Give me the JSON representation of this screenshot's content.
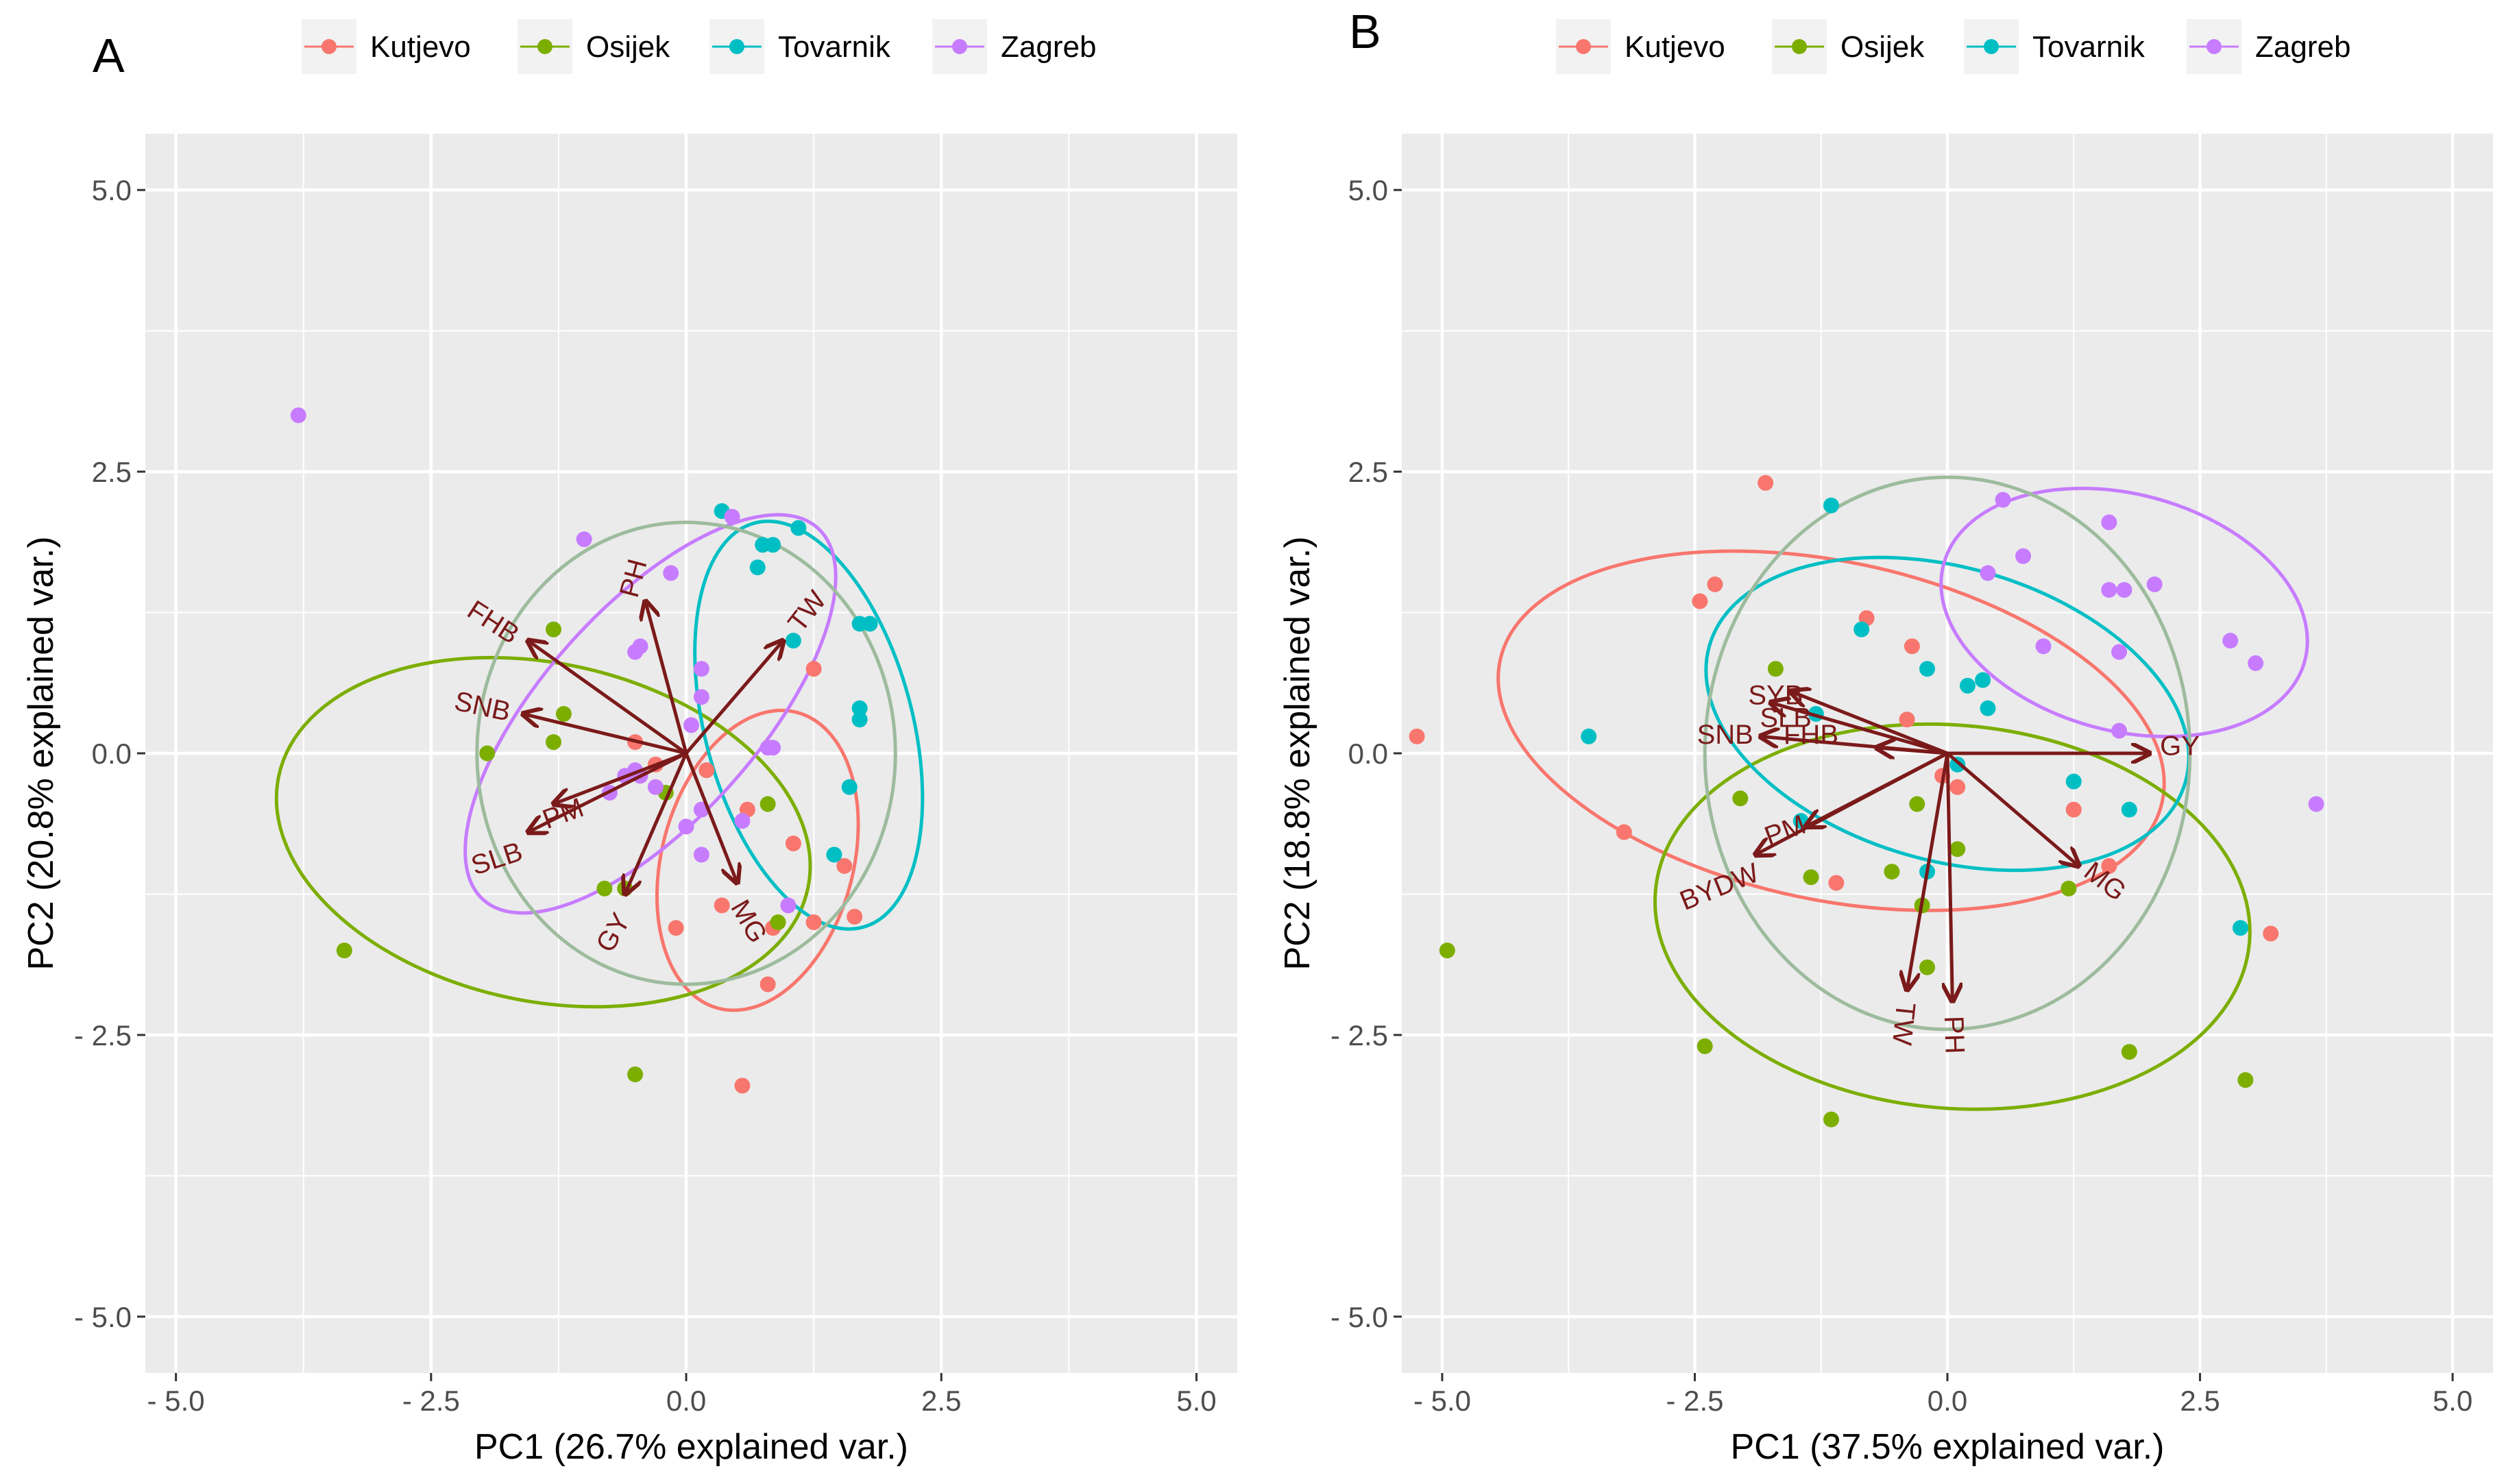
{
  "figure": {
    "colors": {
      "Kutjevo": "#F8766D",
      "Osijek": "#7CAE00",
      "Tovarnik": "#00BFC4",
      "Zagreb": "#C77CFF",
      "loading": "#7B1A1A",
      "overall_ellipse": "#9DBB9D",
      "panel_bg": "#EBEBEB",
      "grid": "#FFFFFF"
    },
    "legend_entries": [
      "Kutjevo",
      "Osijek",
      "Tovarnik",
      "Zagreb"
    ]
  },
  "chart_data": [
    {
      "type": "scatter",
      "panel_label": "A",
      "xlabel": "PC1 (26.7% explained var.)",
      "ylabel": "PC2 (20.8% explained var.)",
      "xlim": [
        -5.3,
        5.4
      ],
      "ylim": [
        -5.5,
        5.5
      ],
      "xticks": [
        -5.0,
        -2.5,
        0.0,
        2.5,
        5.0
      ],
      "xtick_labels": [
        "- 5.0",
        "- 2.5",
        "0.0",
        "2.5",
        "5.0"
      ],
      "yticks": [
        5.0,
        2.5,
        0.0,
        -2.5,
        -5.0
      ],
      "ytick_labels": [
        "5.0",
        "2.5",
        "0.0",
        "- 2.5",
        "- 5.0"
      ],
      "legend_position": "top",
      "series": [
        {
          "name": "Kutjevo",
          "points": [
            [
              -0.5,
              0.1
            ],
            [
              -0.3,
              -0.1
            ],
            [
              0.2,
              -0.15
            ],
            [
              0.6,
              -0.5
            ],
            [
              1.05,
              -0.8
            ],
            [
              1.25,
              0.75
            ],
            [
              1.55,
              -1.0
            ],
            [
              1.65,
              -1.45
            ],
            [
              1.25,
              -1.5
            ],
            [
              0.85,
              -1.55
            ],
            [
              0.35,
              -1.35
            ],
            [
              -0.1,
              -1.55
            ],
            [
              0.8,
              -2.05
            ],
            [
              0.55,
              -2.95
            ]
          ]
        },
        {
          "name": "Osijek",
          "points": [
            [
              -1.3,
              1.1
            ],
            [
              -1.2,
              0.35
            ],
            [
              -1.3,
              0.1
            ],
            [
              -1.95,
              0.0
            ],
            [
              -0.2,
              -0.35
            ],
            [
              -0.6,
              -1.2
            ],
            [
              -0.8,
              -1.2
            ],
            [
              0.8,
              -0.45
            ],
            [
              0.9,
              -1.5
            ],
            [
              -3.35,
              -1.75
            ],
            [
              -0.5,
              -2.85
            ]
          ]
        },
        {
          "name": "Tovarnik",
          "points": [
            [
              0.35,
              2.15
            ],
            [
              0.75,
              1.85
            ],
            [
              0.85,
              1.85
            ],
            [
              1.1,
              2.0
            ],
            [
              0.7,
              1.65
            ],
            [
              1.7,
              1.15
            ],
            [
              1.8,
              1.15
            ],
            [
              1.05,
              1.0
            ],
            [
              1.7,
              0.4
            ],
            [
              1.7,
              0.3
            ],
            [
              1.6,
              -0.3
            ],
            [
              1.45,
              -0.9
            ]
          ]
        },
        {
          "name": "Zagreb",
          "points": [
            [
              -3.8,
              3.0
            ],
            [
              -1.0,
              1.9
            ],
            [
              -0.15,
              1.6
            ],
            [
              0.45,
              2.1
            ],
            [
              -0.5,
              0.9
            ],
            [
              -0.45,
              0.95
            ],
            [
              0.15,
              0.75
            ],
            [
              0.15,
              0.5
            ],
            [
              0.05,
              0.25
            ],
            [
              0.8,
              0.05
            ],
            [
              0.85,
              0.05
            ],
            [
              -0.5,
              -0.15
            ],
            [
              -0.45,
              -0.2
            ],
            [
              -0.3,
              -0.3
            ],
            [
              -0.75,
              -0.35
            ],
            [
              -0.6,
              -0.2
            ],
            [
              0.15,
              -0.5
            ],
            [
              0.0,
              -0.65
            ],
            [
              0.55,
              -0.6
            ],
            [
              0.15,
              -0.9
            ],
            [
              1.0,
              -1.35
            ]
          ]
        }
      ],
      "ellipses": [
        {
          "name": "Kutjevo",
          "cx": 0.7,
          "cy": -0.95,
          "rx": 1.5,
          "ry": 0.85,
          "angle": -75
        },
        {
          "name": "Osijek",
          "cx": -1.4,
          "cy": -0.7,
          "rx": 2.65,
          "ry": 1.5,
          "angle": 12
        },
        {
          "name": "Tovarnik",
          "cx": 1.2,
          "cy": 0.25,
          "rx": 2.05,
          "ry": 0.92,
          "angle": 75
        },
        {
          "name": "Zagreb",
          "cx": -0.35,
          "cy": 0.35,
          "rx": 2.45,
          "ry": 0.95,
          "angle": -48
        },
        {
          "name": "All",
          "cx": 0.0,
          "cy": 0.0,
          "rx": 2.05,
          "ry": 2.05,
          "angle": 0
        }
      ],
      "loadings": [
        {
          "label": "PH",
          "x": -0.4,
          "y": 1.35,
          "lx": -0.5,
          "ly": 1.55,
          "rot": -75
        },
        {
          "label": "FHB",
          "x": -1.55,
          "y": 1.0,
          "lx": -1.9,
          "ly": 1.15,
          "rot": 33
        },
        {
          "label": "SNB",
          "x": -1.6,
          "y": 0.35,
          "lx": -2.0,
          "ly": 0.4,
          "rot": 12
        },
        {
          "label": "PM",
          "x": -1.3,
          "y": -0.45,
          "lx": -1.2,
          "ly": -0.55,
          "rot": -20
        },
        {
          "label": "SLB",
          "x": -1.55,
          "y": -0.7,
          "lx": -1.85,
          "ly": -0.95,
          "rot": -18
        },
        {
          "label": "GY",
          "x": -0.6,
          "y": -1.25,
          "lx": -0.7,
          "ly": -1.6,
          "rot": -60
        },
        {
          "label": "MG",
          "x": 0.5,
          "y": -1.15,
          "lx": 0.6,
          "ly": -1.5,
          "rot": 60
        },
        {
          "label": "TW",
          "x": 0.95,
          "y": 1.0,
          "lx": 1.2,
          "ly": 1.25,
          "rot": -52
        }
      ]
    },
    {
      "type": "scatter",
      "panel_label": "B",
      "xlabel": "PC1 (37.5% explained var.)",
      "ylabel": "PC2 (18.8% explained var.)",
      "xlim": [
        -5.4,
        5.4
      ],
      "ylim": [
        -5.5,
        5.5
      ],
      "xticks": [
        -5.0,
        -2.5,
        0.0,
        2.5,
        5.0
      ],
      "xtick_labels": [
        "- 5.0",
        "- 2.5",
        "0.0",
        "2.5",
        "5.0"
      ],
      "yticks": [
        5.0,
        2.5,
        0.0,
        -2.5,
        -5.0
      ],
      "ytick_labels": [
        "5.0",
        "2.5",
        "0.0",
        "- 2.5",
        "- 5.0"
      ],
      "legend_position": "top",
      "series": [
        {
          "name": "Kutjevo",
          "points": [
            [
              -1.8,
              2.4
            ],
            [
              -2.3,
              1.5
            ],
            [
              -2.45,
              1.35
            ],
            [
              -0.8,
              1.2
            ],
            [
              -0.35,
              0.95
            ],
            [
              -0.4,
              0.3
            ],
            [
              -0.05,
              -0.2
            ],
            [
              0.1,
              -0.3
            ],
            [
              -3.2,
              -0.7
            ],
            [
              -1.1,
              -1.15
            ],
            [
              1.6,
              -1.0
            ],
            [
              1.25,
              -0.5
            ],
            [
              -5.25,
              0.15
            ],
            [
              3.2,
              -1.6
            ]
          ]
        },
        {
          "name": "Osijek",
          "points": [
            [
              -1.7,
              0.75
            ],
            [
              -2.05,
              -0.4
            ],
            [
              -0.3,
              -0.45
            ],
            [
              0.1,
              -0.85
            ],
            [
              -0.55,
              -1.05
            ],
            [
              -1.35,
              -1.1
            ],
            [
              1.2,
              -1.2
            ],
            [
              -0.25,
              -1.35
            ],
            [
              -0.2,
              -1.9
            ],
            [
              -4.95,
              -1.75
            ],
            [
              -2.4,
              -2.6
            ],
            [
              1.8,
              -2.65
            ],
            [
              2.95,
              -2.9
            ],
            [
              -1.15,
              -3.25
            ]
          ]
        },
        {
          "name": "Tovarnik",
          "points": [
            [
              -1.15,
              2.2
            ],
            [
              -0.85,
              1.1
            ],
            [
              -0.2,
              0.75
            ],
            [
              0.2,
              0.6
            ],
            [
              0.35,
              0.65
            ],
            [
              0.4,
              0.4
            ],
            [
              -1.3,
              0.35
            ],
            [
              -3.55,
              0.15
            ],
            [
              0.1,
              -0.1
            ],
            [
              1.25,
              -0.25
            ],
            [
              1.8,
              -0.5
            ],
            [
              -1.45,
              -0.6
            ],
            [
              -0.2,
              -1.05
            ],
            [
              2.9,
              -1.55
            ]
          ]
        },
        {
          "name": "Zagreb",
          "points": [
            [
              0.55,
              2.25
            ],
            [
              1.6,
              2.05
            ],
            [
              0.75,
              1.75
            ],
            [
              0.4,
              1.6
            ],
            [
              1.6,
              1.45
            ],
            [
              1.75,
              1.45
            ],
            [
              2.05,
              1.5
            ],
            [
              0.95,
              0.95
            ],
            [
              1.7,
              0.9
            ],
            [
              2.8,
              1.0
            ],
            [
              3.05,
              0.8
            ],
            [
              1.7,
              0.2
            ],
            [
              3.65,
              -0.45
            ]
          ]
        }
      ],
      "ellipses": [
        {
          "name": "Kutjevo",
          "cx": -1.15,
          "cy": 0.2,
          "rx": 3.35,
          "ry": 1.5,
          "angle": 12
        },
        {
          "name": "Osijek",
          "cx": 0.05,
          "cy": -1.45,
          "rx": 2.95,
          "ry": 1.7,
          "angle": 5
        },
        {
          "name": "Tovarnik",
          "cx": 0.0,
          "cy": 0.35,
          "rx": 2.45,
          "ry": 1.3,
          "angle": 16
        },
        {
          "name": "Zagreb",
          "cx": 1.75,
          "cy": 1.25,
          "rx": 1.85,
          "ry": 1.05,
          "angle": 15
        },
        {
          "name": "All",
          "cx": 0.0,
          "cy": 0.0,
          "rx": 2.4,
          "ry": 2.45,
          "angle": 0
        }
      ],
      "loadings": [
        {
          "label": "SYB",
          "x": -1.55,
          "y": 0.55,
          "lx": -1.7,
          "ly": 0.5,
          "rot": 0
        },
        {
          "label": "SLB",
          "x": -1.75,
          "y": 0.45,
          "lx": -1.6,
          "ly": 0.3,
          "rot": 0
        },
        {
          "label": "SNB",
          "x": -1.85,
          "y": 0.15,
          "lx": -2.2,
          "ly": 0.15,
          "rot": 0
        },
        {
          "label": "FHB",
          "x": -0.7,
          "y": 0.05,
          "lx": -1.35,
          "ly": 0.15,
          "rot": 0
        },
        {
          "label": "GY",
          "x": 2.0,
          "y": 0.0,
          "lx": 2.3,
          "ly": 0.05,
          "rot": 0
        },
        {
          "label": "MG",
          "x": 1.3,
          "y": -1.0,
          "lx": 1.55,
          "ly": -1.15,
          "rot": 38
        },
        {
          "label": "PM",
          "x": -1.4,
          "y": -0.65,
          "lx": -1.6,
          "ly": -0.7,
          "rot": -20
        },
        {
          "label": "BYDW",
          "x": -1.9,
          "y": -0.9,
          "lx": -2.25,
          "ly": -1.2,
          "rot": -22
        },
        {
          "label": "TW",
          "x": -0.4,
          "y": -2.1,
          "lx": -0.45,
          "ly": -2.4,
          "rot": 96
        },
        {
          "label": "PH",
          "x": 0.05,
          "y": -2.2,
          "lx": 0.05,
          "ly": -2.5,
          "rot": 88
        }
      ]
    }
  ]
}
